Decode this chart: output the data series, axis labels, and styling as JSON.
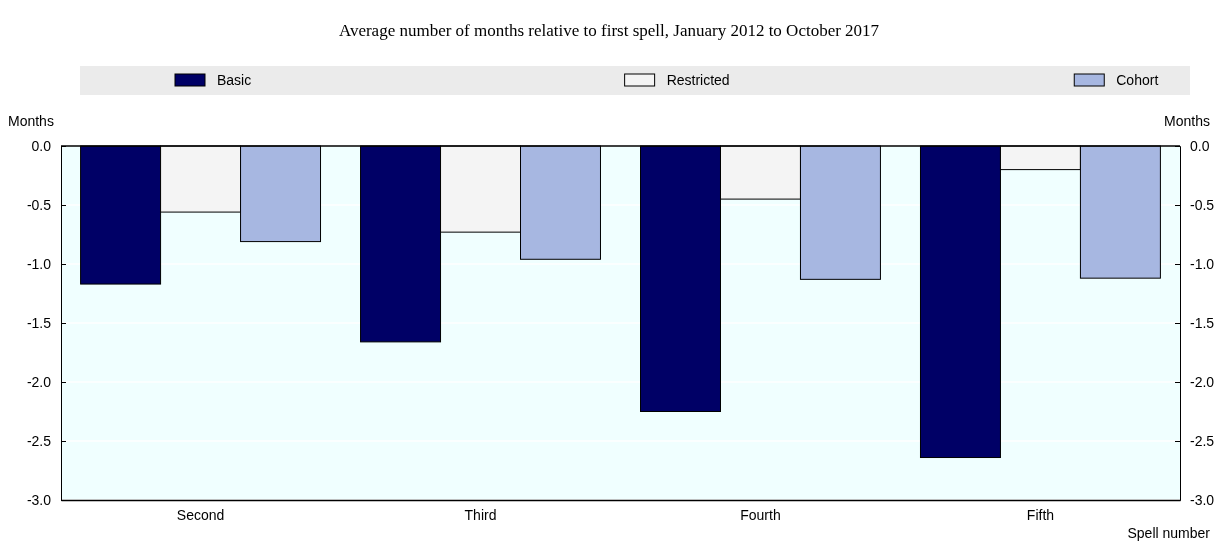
{
  "chart_data": {
    "type": "bar",
    "title": "Average number of months relative to first spell, January 2012 to October 2017",
    "xlabel": "Spell number",
    "ylabel": "Months",
    "y2label": "Months",
    "categories": [
      "Second",
      "Third",
      "Fourth",
      "Fifth"
    ],
    "series": [
      {
        "name": "Basic",
        "color": "#000066",
        "values": [
          -1.17,
          -1.66,
          -2.25,
          -2.64
        ]
      },
      {
        "name": "Restricted",
        "color": "#f4f4f4",
        "values": [
          -0.56,
          -0.73,
          -0.45,
          -0.2
        ]
      },
      {
        "name": "Cohort",
        "color": "#a7b7e1",
        "values": [
          -0.81,
          -0.96,
          -1.13,
          -1.12
        ]
      }
    ],
    "ylim": [
      -3,
      0
    ],
    "yticks": [
      {
        "value": -3,
        "label": "-3.0"
      },
      {
        "value": -2.5,
        "label": "-2.5"
      },
      {
        "value": -2,
        "label": "-2.0"
      },
      {
        "value": -1.5,
        "label": "-1.5"
      },
      {
        "value": -1,
        "label": "-1.0"
      },
      {
        "value": -0.5,
        "label": "-0.5"
      },
      {
        "value": 0,
        "label": "0.0"
      }
    ],
    "y2lim": [
      -3,
      0
    ],
    "y2ticks": [
      {
        "value": -3,
        "label": "-3.0"
      },
      {
        "value": -2.5,
        "label": "-2.5"
      },
      {
        "value": -2,
        "label": "-2.0"
      },
      {
        "value": -1.5,
        "label": "-1.5"
      },
      {
        "value": -1,
        "label": "-1.0"
      },
      {
        "value": -0.5,
        "label": "-0.5"
      },
      {
        "value": 0,
        "label": "0.0"
      }
    ],
    "grid": "y",
    "legend": "top"
  }
}
